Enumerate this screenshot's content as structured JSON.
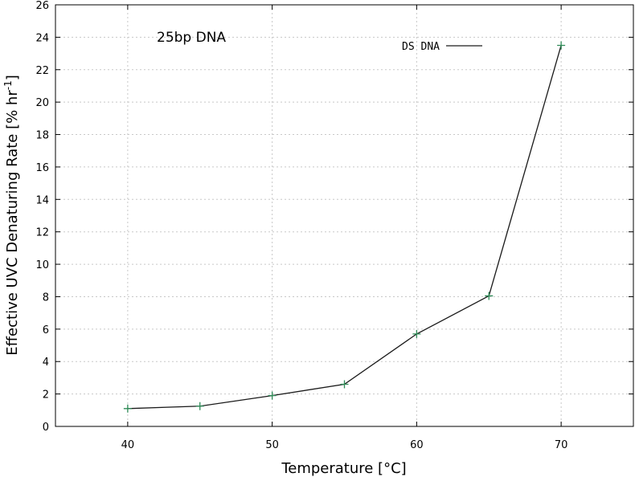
{
  "chart_data": {
    "type": "line",
    "annotation": "25bp DNA",
    "xlabel": "Temperature [°C]",
    "ylabel_main": "Effective UVC Denaturing Rate [% hr",
    "ylabel_sup": "-1",
    "ylabel_end": "]",
    "xlim": [
      35,
      75
    ],
    "ylim": [
      0,
      26
    ],
    "xticks": [
      40,
      50,
      60,
      70
    ],
    "yticks": [
      0,
      2,
      4,
      6,
      8,
      10,
      12,
      14,
      16,
      18,
      20,
      22,
      24,
      26
    ],
    "grid": true,
    "legend_position": "top-right",
    "series": [
      {
        "name": "DS DNA",
        "line_color": "#1a1a1a",
        "marker_color": "#2e8b57",
        "x": [
          40,
          45,
          50,
          55,
          60,
          65,
          70
        ],
        "y": [
          1.1,
          1.25,
          1.9,
          2.6,
          5.7,
          8.05,
          23.5
        ]
      }
    ]
  }
}
